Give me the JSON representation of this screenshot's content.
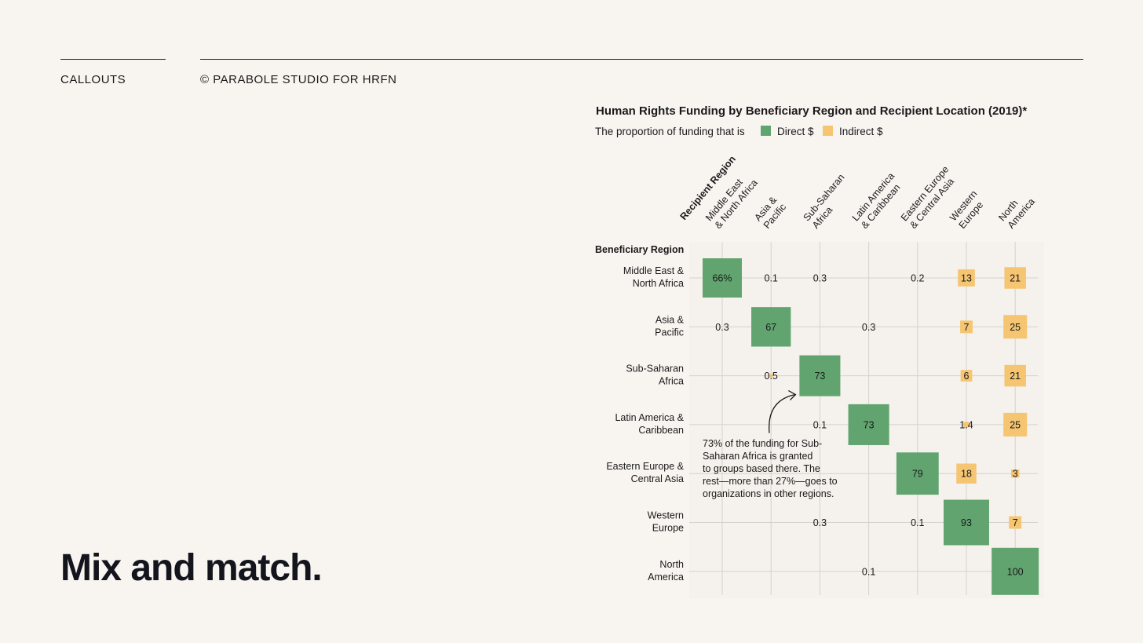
{
  "header": {
    "left_label": "CALLOUTS",
    "right_label": "© PARABOLE STUDIO FOR HRFN"
  },
  "headline": "Mix and match.",
  "chart_data": {
    "type": "heatmap",
    "title": "Human Rights Funding by Beneficiary Region and Recipient Location (2019)*",
    "legend": {
      "prefix": "The proportion of funding that is",
      "items": [
        {
          "label": "Direct $",
          "color": "#61a46f"
        },
        {
          "label": "Indirect $",
          "color": "#f5c572"
        }
      ]
    },
    "row_axis_label": "Beneficiary Region",
    "col_axis_label": "Recipient Region",
    "rows": [
      [
        "Middle East &",
        "North Africa"
      ],
      [
        "Asia &",
        "Pacific"
      ],
      [
        "Sub-Saharan",
        "Africa"
      ],
      [
        "Latin America &",
        "Caribbean"
      ],
      [
        "Eastern Europe &",
        "Central Asia"
      ],
      [
        "Western",
        "Europe"
      ],
      [
        "North",
        "America"
      ]
    ],
    "columns": [
      [
        "Middle East",
        "& North Africa"
      ],
      [
        "Asia &",
        "Pacific"
      ],
      [
        "Sub-Saharan",
        "Africa"
      ],
      [
        "Latin America",
        "& Caribbean"
      ],
      [
        "Eastern Europe",
        "& Central Asia"
      ],
      [
        "Western",
        "Europe"
      ],
      [
        "North",
        "America"
      ]
    ],
    "cells": [
      {
        "row": 0,
        "col": 0,
        "value": 66,
        "label": "66%",
        "type": "direct"
      },
      {
        "row": 0,
        "col": 1,
        "value": 0.1,
        "label": "0.1",
        "type": "indirect"
      },
      {
        "row": 0,
        "col": 2,
        "value": 0.3,
        "label": "0.3",
        "type": "indirect"
      },
      {
        "row": 0,
        "col": 4,
        "value": 0.2,
        "label": "0.2",
        "type": "indirect"
      },
      {
        "row": 0,
        "col": 5,
        "value": 13,
        "label": "13",
        "type": "indirect"
      },
      {
        "row": 0,
        "col": 6,
        "value": 21,
        "label": "21",
        "type": "indirect"
      },
      {
        "row": 1,
        "col": 0,
        "value": 0.3,
        "label": "0.3",
        "type": "indirect"
      },
      {
        "row": 1,
        "col": 1,
        "value": 67,
        "label": "67",
        "type": "direct"
      },
      {
        "row": 1,
        "col": 3,
        "value": 0.3,
        "label": "0.3",
        "type": "indirect"
      },
      {
        "row": 1,
        "col": 5,
        "value": 7,
        "label": "7",
        "type": "indirect"
      },
      {
        "row": 1,
        "col": 6,
        "value": 25,
        "label": "25",
        "type": "indirect"
      },
      {
        "row": 2,
        "col": 1,
        "value": 0.5,
        "label": "0.5",
        "type": "indirect"
      },
      {
        "row": 2,
        "col": 2,
        "value": 73,
        "label": "73",
        "type": "direct"
      },
      {
        "row": 2,
        "col": 5,
        "value": 6,
        "label": "6",
        "type": "indirect"
      },
      {
        "row": 2,
        "col": 6,
        "value": 21,
        "label": "21",
        "type": "indirect"
      },
      {
        "row": 3,
        "col": 2,
        "value": 0.1,
        "label": "0.1",
        "type": "indirect"
      },
      {
        "row": 3,
        "col": 3,
        "value": 73,
        "label": "73",
        "type": "direct"
      },
      {
        "row": 3,
        "col": 5,
        "value": 1.4,
        "label": "1.4",
        "type": "indirect"
      },
      {
        "row": 3,
        "col": 6,
        "value": 25,
        "label": "25",
        "type": "indirect"
      },
      {
        "row": 4,
        "col": 4,
        "value": 79,
        "label": "79",
        "type": "direct"
      },
      {
        "row": 4,
        "col": 5,
        "value": 18,
        "label": "18",
        "type": "indirect"
      },
      {
        "row": 4,
        "col": 6,
        "value": 3,
        "label": "3",
        "type": "indirect"
      },
      {
        "row": 5,
        "col": 2,
        "value": 0.3,
        "label": "0.3",
        "type": "indirect"
      },
      {
        "row": 5,
        "col": 4,
        "value": 0.1,
        "label": "0.1",
        "type": "indirect"
      },
      {
        "row": 5,
        "col": 5,
        "value": 93,
        "label": "93",
        "type": "direct"
      },
      {
        "row": 5,
        "col": 6,
        "value": 7,
        "label": "7",
        "type": "indirect"
      },
      {
        "row": 6,
        "col": 3,
        "value": 0.1,
        "label": "0.1",
        "type": "indirect"
      },
      {
        "row": 6,
        "col": 6,
        "value": 100,
        "label": "100",
        "type": "direct"
      }
    ],
    "annotation": {
      "row": 2,
      "col": 2,
      "lines": [
        "73% of the funding for Sub-",
        "Saharan Africa is granted",
        "to groups based there. The",
        "rest—more than 27%—goes to",
        "organizations in other regions."
      ]
    }
  }
}
